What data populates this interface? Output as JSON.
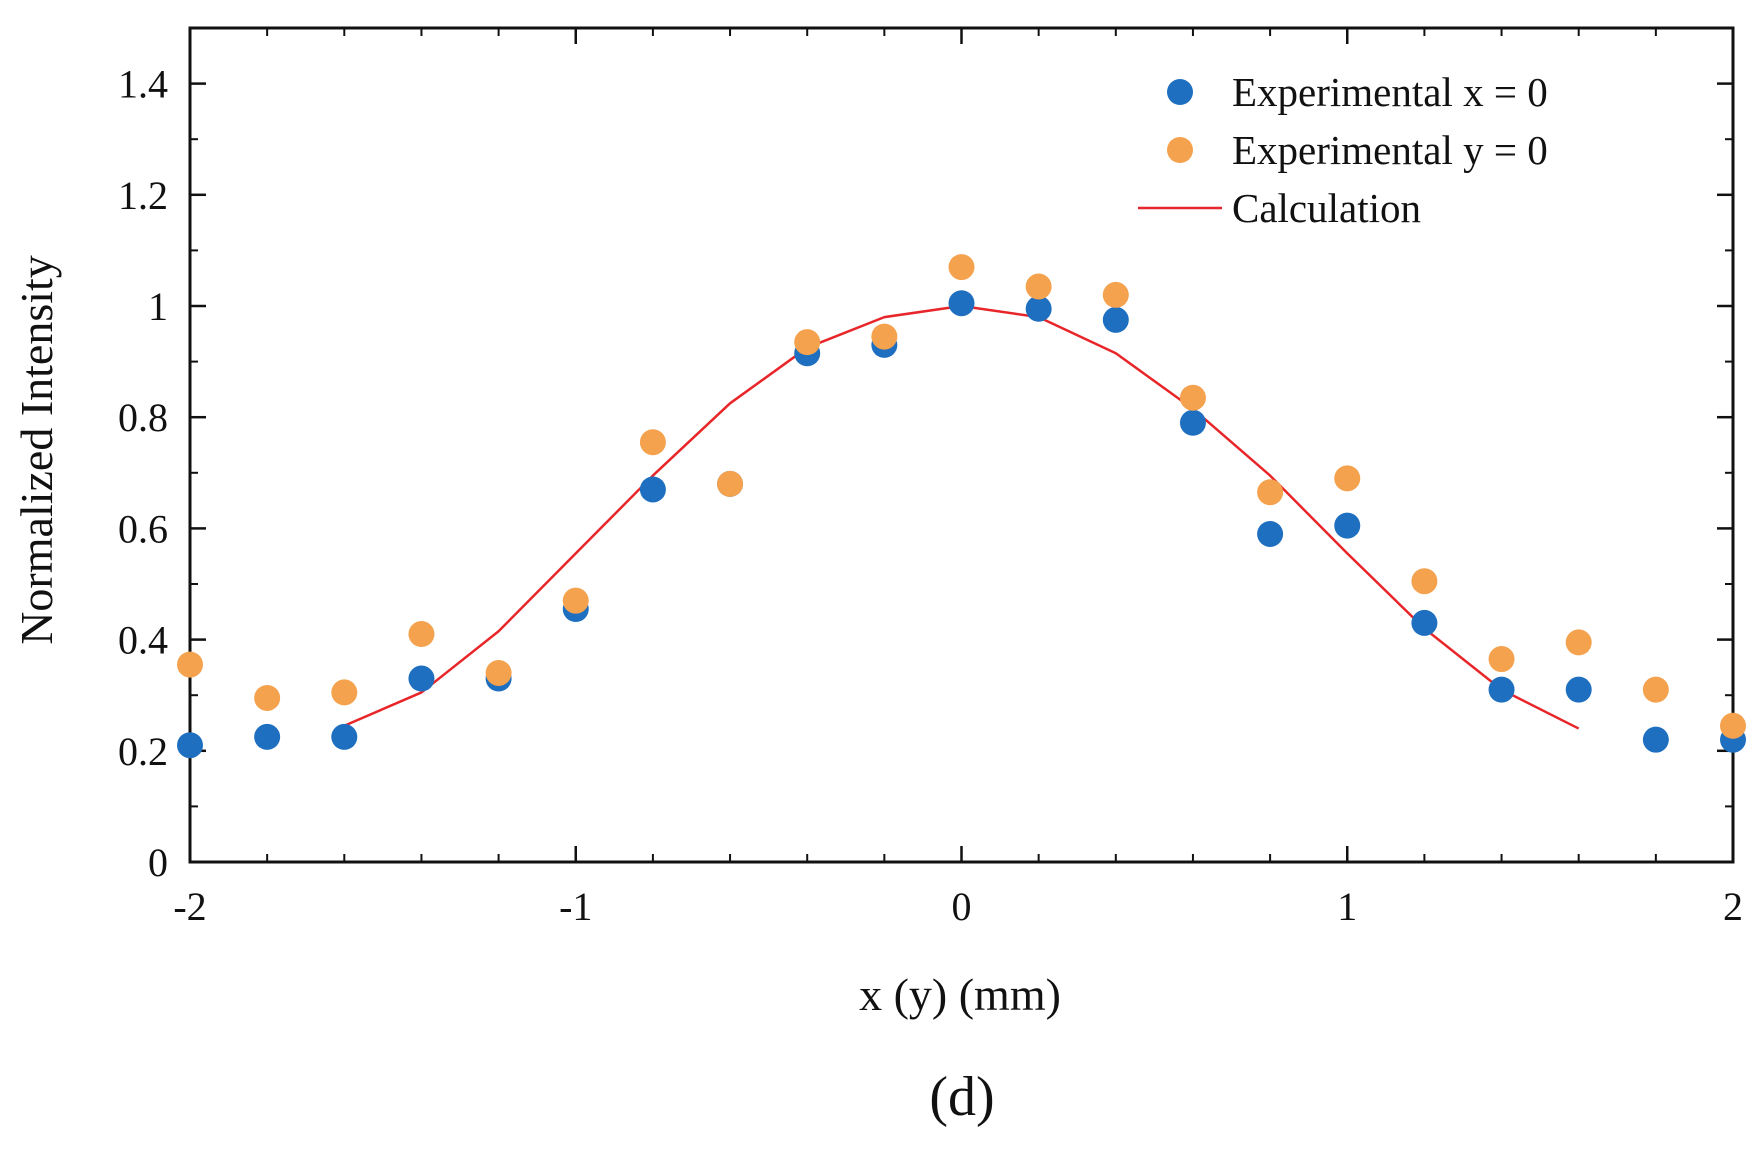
{
  "chart_data": {
    "type": "scatter",
    "title": "",
    "caption": "(d)",
    "xlabel": "x (y) (mm)",
    "ylabel": "Normalized  Intensity",
    "xlim": [
      -2,
      2
    ],
    "ylim": [
      0,
      1.5
    ],
    "x_ticks": [
      -2,
      -1,
      0,
      1,
      2
    ],
    "x_tick_labels": [
      "-2",
      "-1",
      "0",
      "1",
      "2"
    ],
    "y_ticks": [
      0,
      0.2,
      0.4,
      0.6,
      0.8,
      1,
      1.2,
      1.4
    ],
    "y_tick_labels": [
      "0",
      "0.2",
      "0.4",
      "0.6",
      "0.8",
      "1",
      "1.2",
      "1.4"
    ],
    "grid": false,
    "legend_position": "top-right",
    "series": [
      {
        "name": "Experimental x = 0",
        "kind": "scatter",
        "color": "#1f6fc0",
        "x": [
          -2,
          -1.8,
          -1.6,
          -1.4,
          -1.2,
          -1,
          -0.8,
          -0.6,
          -0.4,
          -0.2,
          0,
          0.2,
          0.4,
          0.6,
          0.8,
          1,
          1.2,
          1.4,
          1.6,
          1.8,
          2
        ],
        "y": [
          0.21,
          0.225,
          0.225,
          0.33,
          0.33,
          0.455,
          0.67,
          0.68,
          0.915,
          0.93,
          1.005,
          0.995,
          0.975,
          0.79,
          0.59,
          0.605,
          0.43,
          0.31,
          0.31,
          0.22,
          0.22
        ]
      },
      {
        "name": "Experimental y = 0",
        "kind": "scatter",
        "color": "#f4a24e",
        "x": [
          -2,
          -1.8,
          -1.6,
          -1.4,
          -1.2,
          -1,
          -0.8,
          -0.6,
          -0.4,
          -0.2,
          0,
          0.2,
          0.4,
          0.6,
          0.8,
          1,
          1.2,
          1.4,
          1.6,
          1.8,
          2
        ],
        "y": [
          0.355,
          0.295,
          0.305,
          0.41,
          0.34,
          0.47,
          0.755,
          0.68,
          0.935,
          0.945,
          1.07,
          1.035,
          1.02,
          0.835,
          0.665,
          0.69,
          0.505,
          0.365,
          0.395,
          0.31,
          0.245
        ]
      },
      {
        "name": "Calculation",
        "kind": "line",
        "color": "#e8262a",
        "x": [
          -1.6,
          -1.4,
          -1.2,
          -1,
          -0.8,
          -0.6,
          -0.4,
          -0.2,
          0,
          0.2,
          0.4,
          0.6,
          0.8,
          1,
          1.2,
          1.4,
          1.6
        ],
        "y": [
          0.245,
          0.305,
          0.415,
          0.555,
          0.695,
          0.825,
          0.925,
          0.98,
          1,
          0.98,
          0.915,
          0.815,
          0.695,
          0.555,
          0.42,
          0.31,
          0.24
        ]
      }
    ]
  }
}
